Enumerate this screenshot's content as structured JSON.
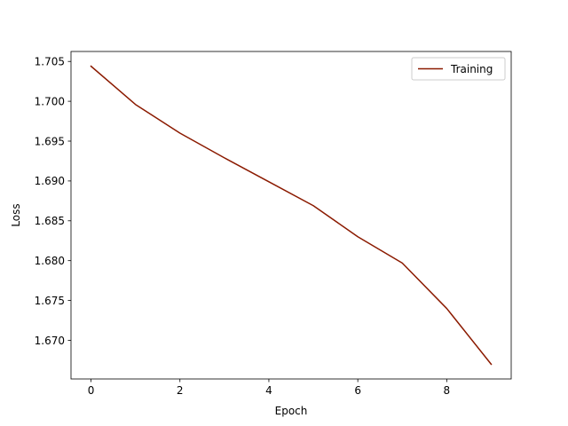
{
  "chart_data": {
    "type": "line",
    "xlabel": "Epoch",
    "ylabel": "Loss",
    "xlim": [
      -0.45,
      9.45
    ],
    "ylim": [
      1.66515,
      1.70625
    ],
    "xticks": [
      0,
      2,
      4,
      6,
      8
    ],
    "yticks": [
      1.67,
      1.675,
      1.68,
      1.685,
      1.69,
      1.695,
      1.7,
      1.705
    ],
    "grid": false,
    "legend": {
      "placement": "top-right"
    },
    "series": [
      {
        "name": "Training",
        "color": "#8b1a00",
        "x": [
          0,
          1,
          2,
          3,
          4,
          5,
          6,
          7,
          8,
          9
        ],
        "y": [
          1.7044,
          1.6996,
          1.696,
          1.6929,
          1.6899,
          1.6869,
          1.683,
          1.6797,
          1.674,
          1.667
        ]
      }
    ]
  }
}
